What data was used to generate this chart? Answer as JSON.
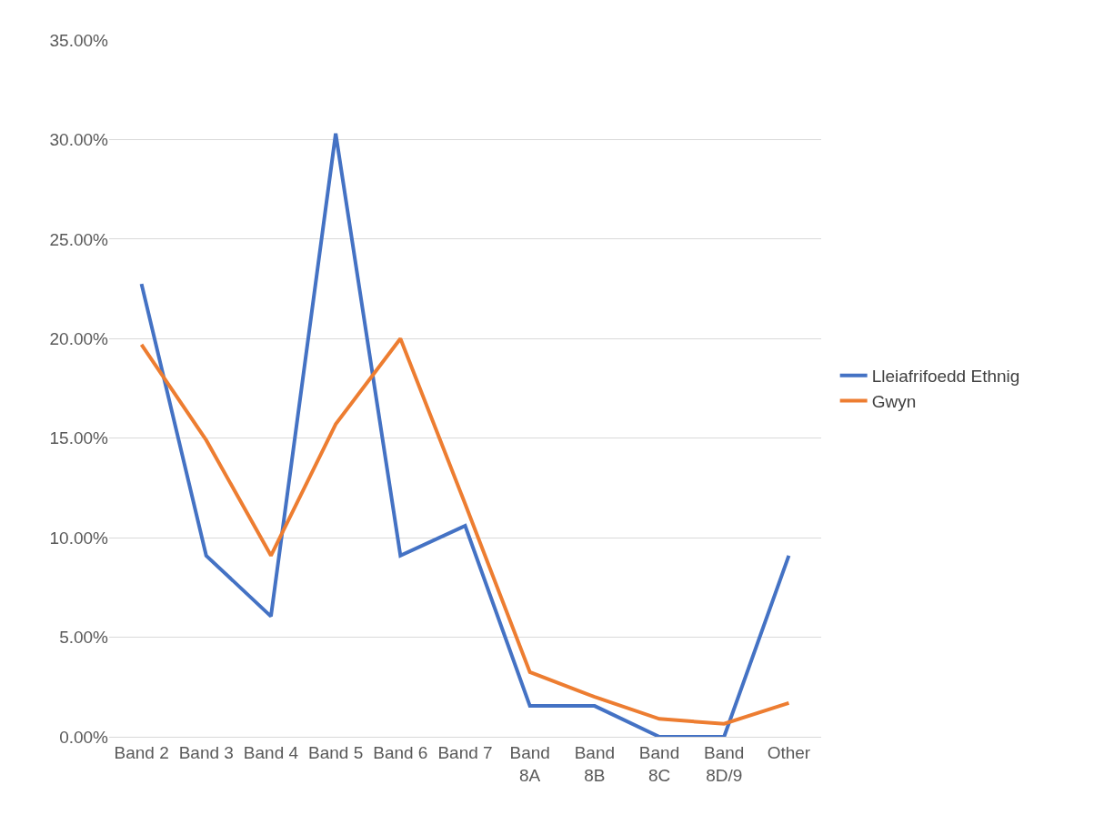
{
  "chart_data": {
    "type": "line",
    "categories": [
      "Band 2",
      "Band 3",
      "Band 4",
      "Band 5",
      "Band 6",
      "Band 7",
      "Band 8A",
      "Band 8B",
      "Band 8C",
      "Band 8D/9",
      "Other"
    ],
    "series": [
      {
        "name": "Lleiafrifoedd Ethnig",
        "color": "#4472c4",
        "values": [
          22.75,
          9.1,
          6.05,
          30.3,
          9.1,
          10.6,
          1.55,
          1.55,
          0,
          0,
          9.1
        ]
      },
      {
        "name": "Gwyn",
        "color": "#ed7d31",
        "values": [
          19.7,
          14.9,
          9.1,
          15.7,
          20.0,
          11.7,
          3.25,
          2.0,
          0.9,
          0.65,
          1.7
        ]
      }
    ],
    "ylim": [
      0,
      35
    ],
    "yticks": [
      {
        "value": 0,
        "label": "0.00%"
      },
      {
        "value": 5,
        "label": "5.00%"
      },
      {
        "value": 10,
        "label": "10.00%"
      },
      {
        "value": 15,
        "label": "15.00%"
      },
      {
        "value": 20,
        "label": "20.00%"
      },
      {
        "value": 25,
        "label": "25.00%"
      },
      {
        "value": 30,
        "label": "30.00%"
      },
      {
        "value": 35,
        "label": "35.00%"
      }
    ],
    "grid": "y",
    "legend": "right",
    "marker": "none",
    "line_style": "solid"
  }
}
